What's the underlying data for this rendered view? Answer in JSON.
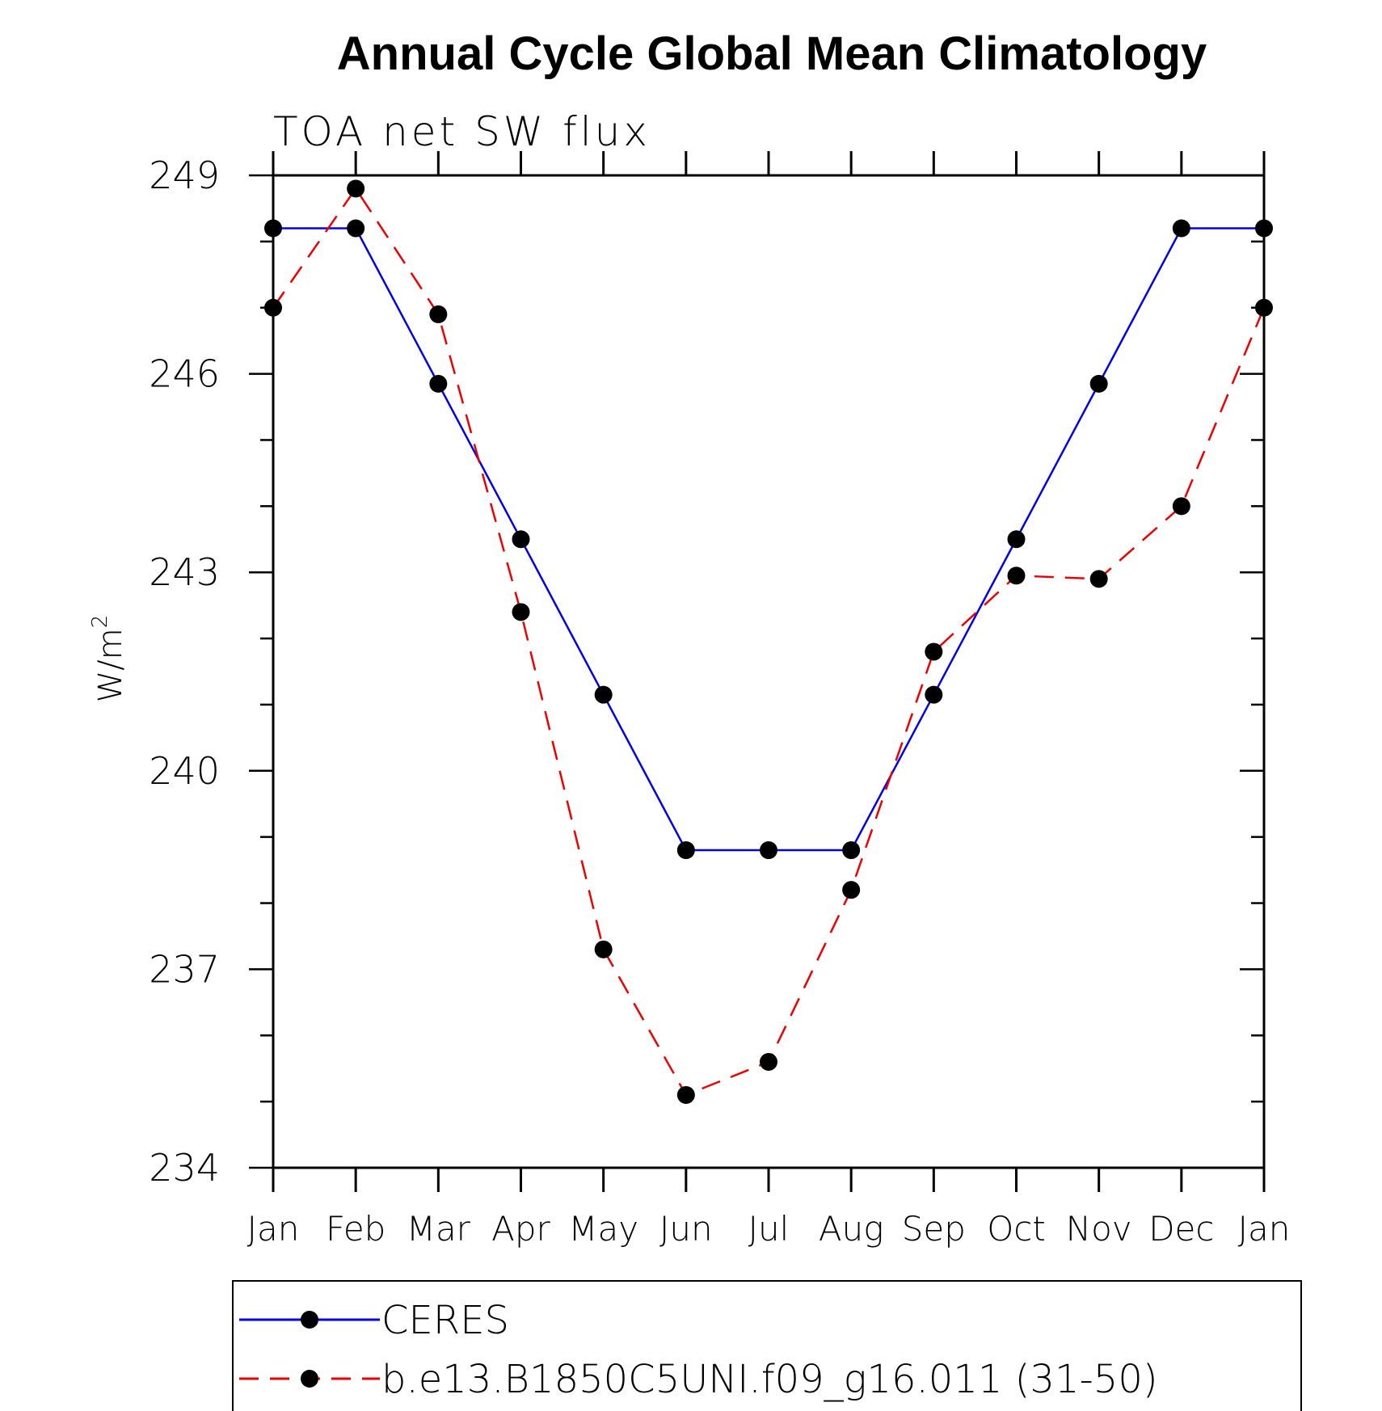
{
  "chart_data": {
    "type": "line",
    "title": "Annual Cycle Global Mean Climatology",
    "subtitle": "TOA net SW flux",
    "ylabel_main": "W/m",
    "ylabel_sup": "2",
    "xlabel": "",
    "categories": [
      "Jan",
      "Feb",
      "Mar",
      "Apr",
      "May",
      "Jun",
      "Jul",
      "Aug",
      "Sep",
      "Oct",
      "Nov",
      "Dec",
      "Jan"
    ],
    "ylim": [
      234,
      249
    ],
    "yticks": [
      234,
      237,
      240,
      243,
      246,
      249
    ],
    "yticks_minor_step": 1,
    "grid": false,
    "legend_position": "bottom",
    "series": [
      {
        "name": "CERES",
        "color": "#0000ee",
        "dash": "solid",
        "marker": "filled-circle",
        "values": [
          248.2,
          248.2,
          245.85,
          243.5,
          241.15,
          238.8,
          238.8,
          238.8,
          241.15,
          243.5,
          245.85,
          248.2,
          248.2
        ]
      },
      {
        "name": "b.e13.B1850C5UNI.f09_g16.011 (31-50)",
        "color": "#ee0000",
        "dash": "dashed",
        "marker": "filled-circle",
        "values": [
          247.0,
          248.8,
          246.9,
          242.4,
          237.3,
          235.1,
          235.6,
          238.2,
          241.8,
          242.95,
          242.9,
          244.0,
          247.0
        ]
      }
    ]
  }
}
